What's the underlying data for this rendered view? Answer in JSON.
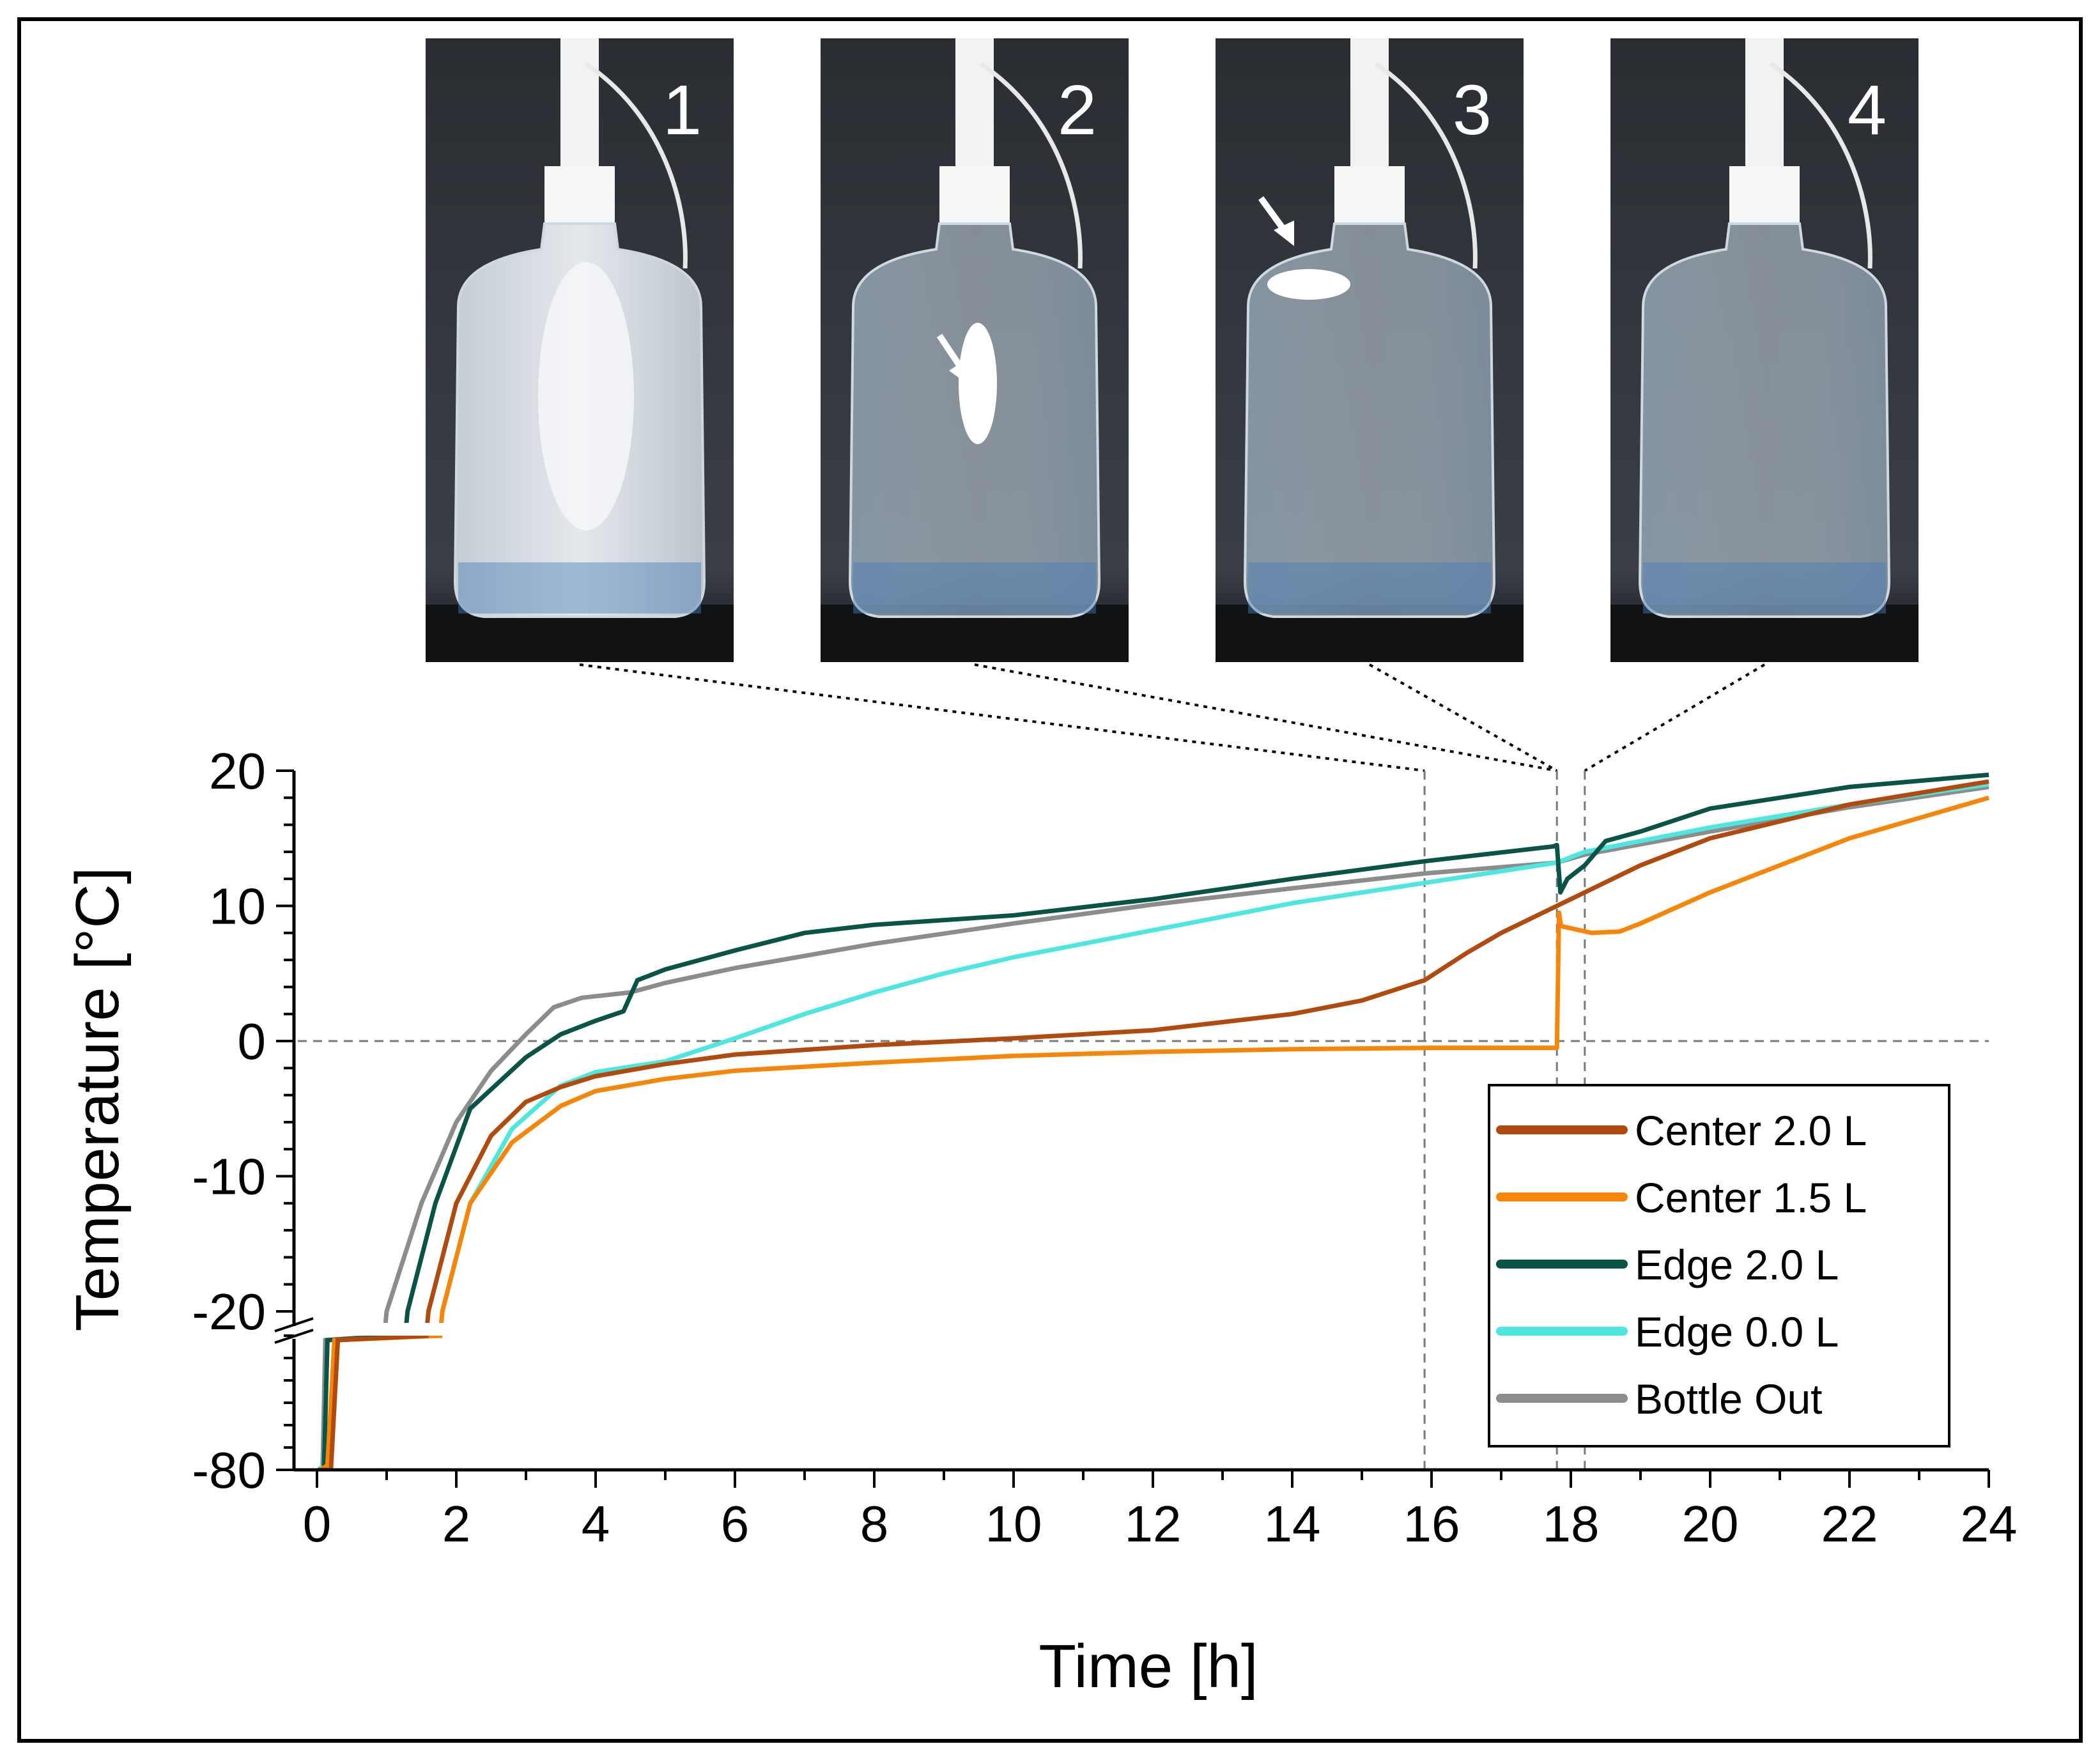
{
  "chart_data": {
    "type": "line",
    "xlabel": "Time [h]",
    "ylabel": "Temperature [°C]",
    "xlim": [
      0,
      24
    ],
    "ylim_main": [
      -20,
      20
    ],
    "ylim_lower": [
      -80,
      -20
    ],
    "axis_break": true,
    "x_ticks": [
      "0",
      "2",
      "4",
      "6",
      "8",
      "10",
      "12",
      "14",
      "16",
      "18",
      "20",
      "22",
      "24"
    ],
    "y_ticks_main": [
      "20",
      "10",
      "0",
      "-10",
      "-20"
    ],
    "y_ticks_lower": [
      "-80"
    ],
    "reference_lines": {
      "horizontal_y": 0,
      "vertical_x": [
        15.9,
        17.8,
        18.2
      ]
    },
    "photos": [
      {
        "label": "1",
        "time": 15.9,
        "note": "bottle mostly frozen, frost on outside"
      },
      {
        "label": "2",
        "time": 17.8,
        "note": "ice core in the middle"
      },
      {
        "label": "3",
        "time": 17.8,
        "note": "small ice floating at top"
      },
      {
        "label": "4",
        "time": 18.2,
        "note": "fully melted"
      }
    ],
    "series": [
      {
        "name": "Center 2.0 L",
        "color": "#B14A0E",
        "points": [
          [
            0.05,
            -80
          ],
          [
            0.2,
            -80
          ],
          [
            0.3,
            -22
          ],
          [
            1.6,
            -20
          ],
          [
            2,
            -12
          ],
          [
            2.5,
            -7
          ],
          [
            3,
            -4.5
          ],
          [
            3.5,
            -3.4
          ],
          [
            4,
            -2.6
          ],
          [
            5,
            -1.7
          ],
          [
            6,
            -1.0
          ],
          [
            8,
            -0.3
          ],
          [
            10,
            0.2
          ],
          [
            12,
            0.8
          ],
          [
            14,
            2.0
          ],
          [
            15,
            3.0
          ],
          [
            15.9,
            4.5
          ],
          [
            16.5,
            6.5
          ],
          [
            17,
            8.0
          ],
          [
            17.8,
            10.0
          ],
          [
            18,
            10.5
          ],
          [
            18.2,
            11.0
          ],
          [
            19,
            13.0
          ],
          [
            20,
            15.0
          ],
          [
            22,
            17.5
          ],
          [
            24,
            19.2
          ]
        ]
      },
      {
        "name": "Center 1.5 L",
        "color": "#F5860A",
        "points": [
          [
            0.05,
            -80
          ],
          [
            0.15,
            -78
          ],
          [
            0.25,
            -22
          ],
          [
            1.8,
            -20
          ],
          [
            2.2,
            -12
          ],
          [
            2.8,
            -7.5
          ],
          [
            3.5,
            -4.8
          ],
          [
            4,
            -3.7
          ],
          [
            5,
            -2.8
          ],
          [
            6,
            -2.2
          ],
          [
            8,
            -1.6
          ],
          [
            10,
            -1.1
          ],
          [
            12,
            -0.8
          ],
          [
            14,
            -0.6
          ],
          [
            16,
            -0.5
          ],
          [
            17.75,
            -0.5
          ],
          [
            17.8,
            -0.5
          ],
          [
            17.83,
            9.5
          ],
          [
            17.86,
            8.5
          ],
          [
            18.3,
            8.0
          ],
          [
            18.7,
            8.1
          ],
          [
            19,
            8.7
          ],
          [
            20,
            11.0
          ],
          [
            22,
            15.0
          ],
          [
            24,
            18.0
          ]
        ]
      },
      {
        "name": "Edge 2.0 L",
        "color": "#0A5447",
        "points": [
          [
            0.02,
            -80
          ],
          [
            0.1,
            -80
          ],
          [
            0.15,
            -22
          ],
          [
            1.3,
            -20
          ],
          [
            1.7,
            -12
          ],
          [
            2.2,
            -5
          ],
          [
            3,
            -1.2
          ],
          [
            3.5,
            0.5
          ],
          [
            4,
            1.5
          ],
          [
            4.4,
            2.2
          ],
          [
            4.6,
            4.5
          ],
          [
            5,
            5.3
          ],
          [
            6,
            6.7
          ],
          [
            7,
            8.0
          ],
          [
            8,
            8.6
          ],
          [
            10,
            9.3
          ],
          [
            12,
            10.5
          ],
          [
            14,
            12.0
          ],
          [
            15.9,
            13.3
          ],
          [
            17.75,
            14.4
          ],
          [
            17.8,
            14.5
          ],
          [
            17.85,
            11.0
          ],
          [
            17.95,
            12.0
          ],
          [
            18.2,
            13.0
          ],
          [
            18.5,
            14.8
          ],
          [
            19,
            15.5
          ],
          [
            20,
            17.2
          ],
          [
            22,
            18.8
          ],
          [
            24,
            19.7
          ]
        ]
      },
      {
        "name": "Edge 0.0 L",
        "color": "#4EE6DF",
        "points": [
          [
            0.02,
            -80
          ],
          [
            0.1,
            -78
          ],
          [
            0.15,
            -22
          ],
          [
            1.8,
            -20
          ],
          [
            2.2,
            -12
          ],
          [
            2.8,
            -6.5
          ],
          [
            3.5,
            -3.3
          ],
          [
            4,
            -2.3
          ],
          [
            5,
            -1.5
          ],
          [
            6,
            0.2
          ],
          [
            7,
            2.0
          ],
          [
            8,
            3.6
          ],
          [
            9,
            5.0
          ],
          [
            10,
            6.2
          ],
          [
            12,
            8.2
          ],
          [
            14,
            10.2
          ],
          [
            15.9,
            11.7
          ],
          [
            17.8,
            13.2
          ],
          [
            18.2,
            14.0
          ],
          [
            20,
            15.8
          ],
          [
            22,
            17.5
          ],
          [
            24,
            19.0
          ]
        ]
      },
      {
        "name": "Bottle Out",
        "color": "#8C8C8C",
        "points": [
          [
            0.02,
            -80
          ],
          [
            0.08,
            -80
          ],
          [
            0.12,
            -22
          ],
          [
            1.0,
            -20
          ],
          [
            1.5,
            -12
          ],
          [
            2,
            -6
          ],
          [
            2.5,
            -2.2
          ],
          [
            3,
            0.5
          ],
          [
            3.4,
            2.5
          ],
          [
            3.8,
            3.2
          ],
          [
            4.5,
            3.6
          ],
          [
            5,
            4.3
          ],
          [
            6,
            5.4
          ],
          [
            8,
            7.2
          ],
          [
            10,
            8.7
          ],
          [
            12,
            10.1
          ],
          [
            14,
            11.3
          ],
          [
            15.9,
            12.4
          ],
          [
            17.8,
            13.2
          ],
          [
            18.2,
            13.8
          ],
          [
            20,
            15.5
          ],
          [
            22,
            17.3
          ],
          [
            24,
            18.8
          ]
        ]
      }
    ]
  }
}
